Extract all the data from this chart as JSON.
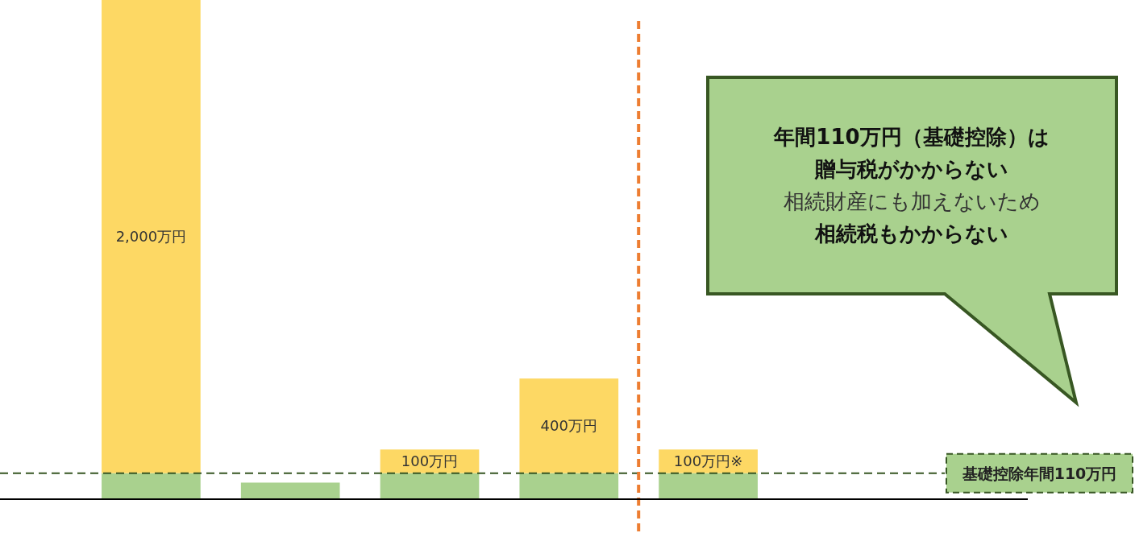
{
  "chart_data": {
    "type": "bar",
    "stacked": true,
    "categories": [
      null,
      null,
      null,
      null,
      null
    ],
    "ylim": [
      0,
      2110
    ],
    "series": [
      {
        "color": "#a9d18e",
        "values": [
          110,
          70,
          110,
          110,
          110
        ]
      },
      {
        "color": "#fdd864",
        "values": [
          2000,
          null,
          100,
          400,
          100
        ],
        "value_labels": [
          "2,000万円",
          null,
          "100万円",
          "400万円",
          "100万円※"
        ]
      }
    ],
    "ref_lines": [
      {
        "axis": "y",
        "value": 110,
        "label": "基礎控除年間110万円",
        "color": "#375623",
        "line_style": "dashed"
      }
    ],
    "annotations": [
      "年間110万円（基礎控除）は",
      "贈与税がかからない",
      "相続財産にも加えないため",
      "相続税もかからない"
    ]
  }
}
